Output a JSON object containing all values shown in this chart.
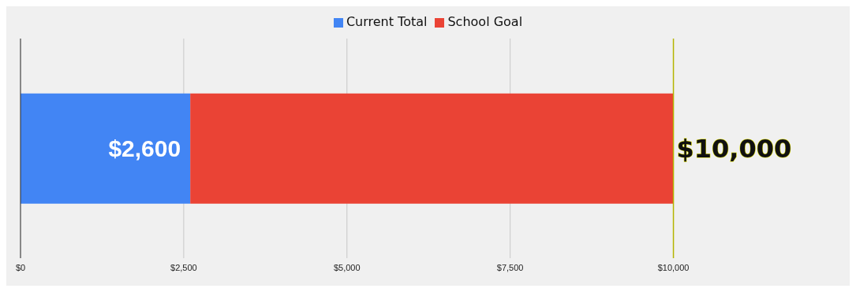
{
  "chart_data": {
    "type": "bar",
    "orientation": "horizontal",
    "stacked": true,
    "categories": [
      null
    ],
    "series": [
      {
        "name": "Current Total",
        "color": "#4285f4",
        "values": [
          2600
        ],
        "value_labels": [
          "$2,600"
        ]
      },
      {
        "name": "School Goal",
        "color": "#ea4335",
        "values": [
          7400
        ],
        "value_labels": [
          null
        ]
      }
    ],
    "totals": [
      "$10,000"
    ],
    "xlim": [
      0,
      12700
    ],
    "xticks": [
      {
        "value": 0,
        "label": "$0"
      },
      {
        "value": 2500,
        "label": "$2,500"
      },
      {
        "value": 5000,
        "label": "$5,000"
      },
      {
        "value": 7500,
        "label": "$7,500"
      },
      {
        "value": 10000,
        "label": "$10,000"
      }
    ],
    "ref_lines": [
      {
        "axis": "x",
        "value": 10000,
        "color": "#b5b500"
      }
    ],
    "grid": "x",
    "legend": "top"
  }
}
